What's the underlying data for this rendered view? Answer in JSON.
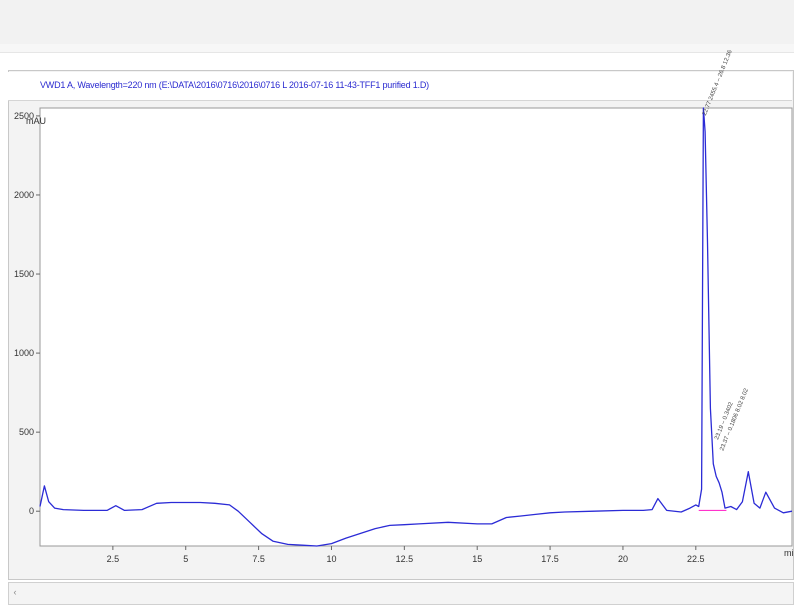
{
  "signal_title": "VWD1 A, Wavelength=220 nm (E:\\DATA\\2016\\0716\\2016\\0716 L 2016-07-16 11-43-TFF1 purified 1.D)",
  "chart_data": {
    "type": "line",
    "title": "",
    "xlabel": "min",
    "ylabel": "mAU",
    "xlim": [
      0,
      25.8
    ],
    "ylim": [
      -220,
      2550
    ],
    "x_ticks": [
      "2.5",
      "5",
      "7.5",
      "10",
      "12.5",
      "15",
      "17.5",
      "20",
      "22.5"
    ],
    "x_tick_values": [
      2.5,
      5,
      7.5,
      10,
      12.5,
      15,
      17.5,
      20,
      22.5
    ],
    "y_ticks": [
      "0",
      "500",
      "1000",
      "1500",
      "2000",
      "2500"
    ],
    "y_tick_values": [
      0,
      500,
      1000,
      1500,
      2000,
      2500
    ],
    "line_color": "#2b2bd6",
    "baseline_color": "#ff33cc",
    "series": [
      {
        "x": [
          0,
          0.15,
          0.3,
          0.5,
          0.8,
          1.5,
          2.3,
          2.6,
          2.9,
          3.5,
          4.0,
          4.5,
          5.5,
          6.0,
          6.5,
          6.8,
          7.2,
          7.6,
          8.0,
          8.5,
          9.0,
          9.5,
          10.0,
          10.5,
          11.0,
          11.5,
          12.0,
          12.5,
          13.0,
          14.0,
          15.0,
          15.5,
          16.0,
          16.5,
          17.0,
          17.5,
          18.0,
          19.0,
          20.0,
          20.7,
          21.0,
          21.2,
          21.5,
          22.0,
          22.3,
          22.5,
          22.6,
          22.7,
          22.76,
          22.82,
          22.9,
          23.0,
          23.1,
          23.2,
          23.3,
          23.4,
          23.5,
          23.7,
          23.9,
          24.1,
          24.3,
          24.5,
          24.7,
          24.9,
          25.2,
          25.5,
          25.8
        ],
        "y": [
          30,
          160,
          60,
          20,
          10,
          5,
          5,
          35,
          5,
          10,
          50,
          55,
          55,
          50,
          40,
          0,
          -70,
          -140,
          -190,
          -210,
          -215,
          -220,
          -205,
          -170,
          -140,
          -110,
          -90,
          -85,
          -80,
          -70,
          -80,
          -80,
          -40,
          -30,
          -20,
          -10,
          -5,
          0,
          5,
          5,
          10,
          80,
          5,
          -5,
          20,
          40,
          30,
          140,
          2550,
          2400,
          1700,
          650,
          300,
          220,
          180,
          120,
          20,
          30,
          10,
          60,
          250,
          50,
          20,
          120,
          20,
          -10,
          0
        ]
      }
    ],
    "peaks": [
      {
        "rt": 22.77,
        "label": "22.77 2455.4 – 26.8 12.36"
      },
      {
        "rt": 23.19,
        "label": "23.19 – 0.3402"
      },
      {
        "rt": 23.37,
        "label": "23.37 – 0.1806 8.02 8.02"
      }
    ]
  }
}
